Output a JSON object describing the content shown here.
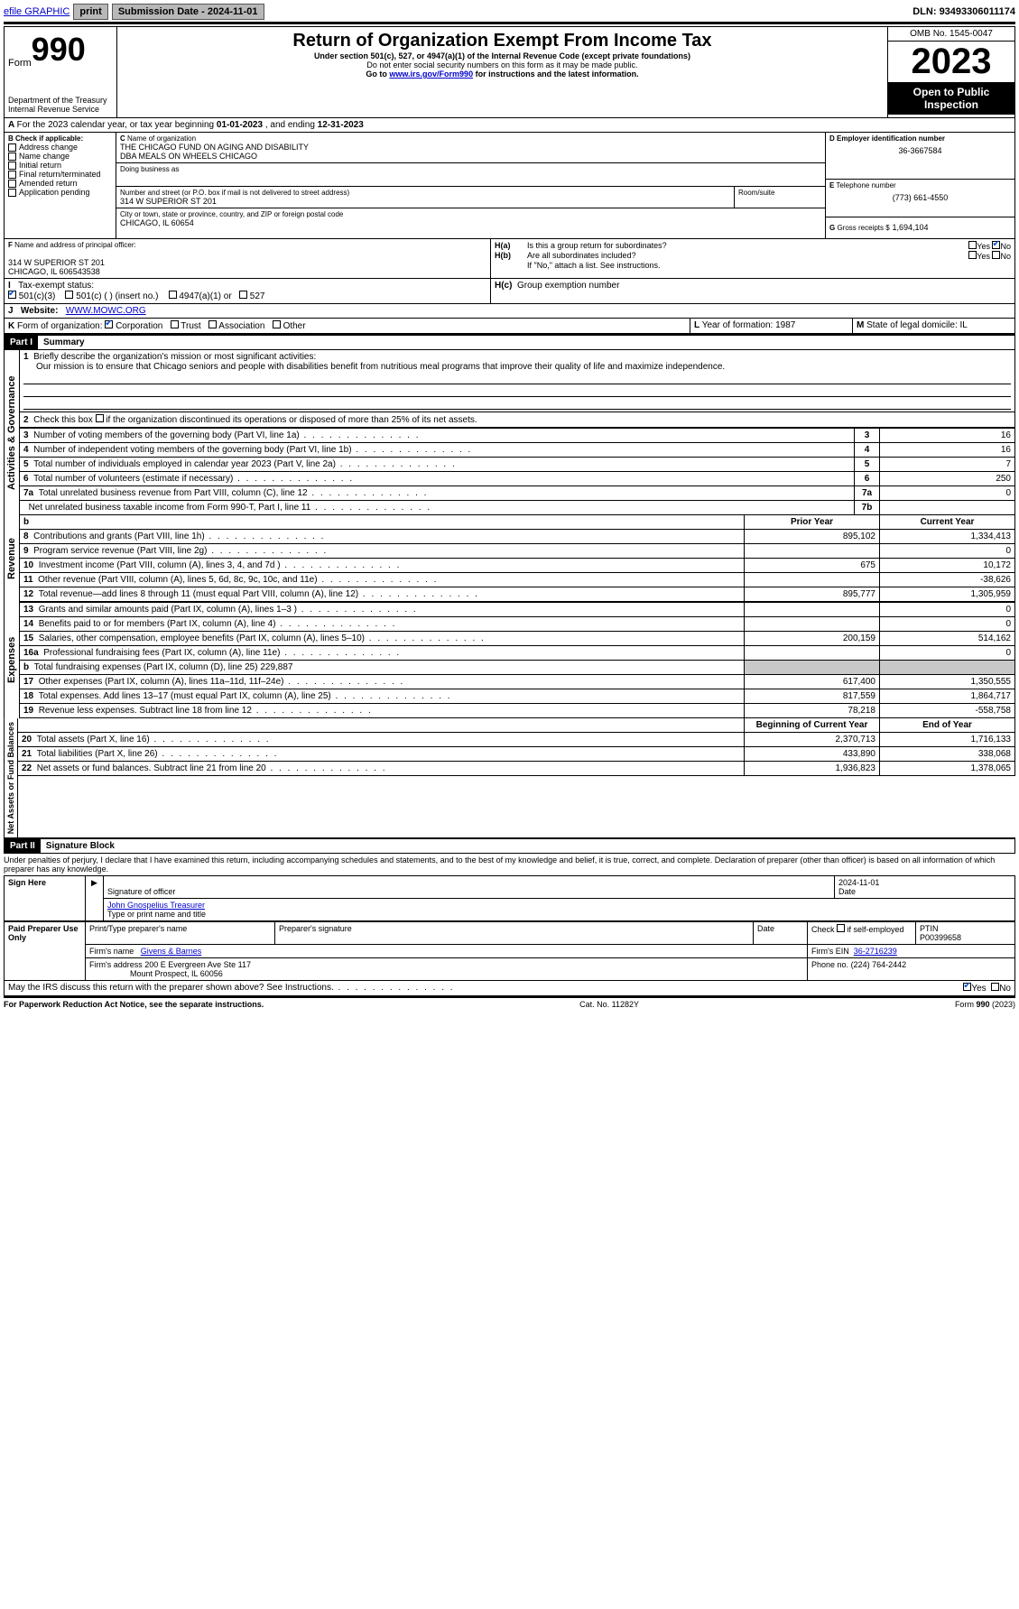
{
  "topbar": {
    "efile": "efile GRAPHIC",
    "print": "print",
    "submission_label": "Submission Date - ",
    "submission_date": "2024-11-01",
    "dln_label": "DLN: ",
    "dln": "93493306011174"
  },
  "header": {
    "form_word": "Form",
    "form_no": "990",
    "dept": "Department of the Treasury",
    "irs": "Internal Revenue Service",
    "title": "Return of Organization Exempt From Income Tax",
    "subtitle": "Under section 501(c), 527, or 4947(a)(1) of the Internal Revenue Code (except private foundations)",
    "warn": "Do not enter social security numbers on this form as it may be made public.",
    "goto_pre": "Go to ",
    "goto_link": "www.irs.gov/Form990",
    "goto_post": " for instructions and the latest information.",
    "omb": "OMB No. 1545-0047",
    "year": "2023",
    "open": "Open to Public Inspection"
  },
  "A": {
    "text": "For the 2023 calendar year, or tax year beginning ",
    "begin": "01-01-2023",
    "mid": " , and ending ",
    "end": "12-31-2023"
  },
  "B": {
    "label": "Check if applicable:",
    "opts": [
      "Address change",
      "Name change",
      "Initial return",
      "Final return/terminated",
      "Amended return",
      "Application pending"
    ]
  },
  "C": {
    "name_label": "Name of organization",
    "name1": "THE CHICAGO FUND ON AGING AND DISABILITY",
    "name2": "DBA MEALS ON WHEELS CHICAGO",
    "dba_label": "Doing business as",
    "street_label": "Number and street (or P.O. box if mail is not delivered to street address)",
    "street": "314 W SUPERIOR ST 201",
    "room_label": "Room/suite",
    "city_label": "City or town, state or province, country, and ZIP or foreign postal code",
    "city": "CHICAGO, IL  60654"
  },
  "D": {
    "label": "Employer identification number",
    "value": "36-3667584"
  },
  "E": {
    "label": "Telephone number",
    "value": "(773) 661-4550"
  },
  "G": {
    "label": "Gross receipts $",
    "value": "1,694,104"
  },
  "F": {
    "label": "Name and address of principal officer:",
    "addr1": "314 W SUPERIOR ST 201",
    "addr2": "CHICAGO, IL  606543538"
  },
  "H": {
    "a": "Is this a group return for subordinates?",
    "b": "Are all subordinates included?",
    "b_note": "If \"No,\" attach a list. See instructions.",
    "c": "Group exemption number",
    "yes": "Yes",
    "no": "No"
  },
  "I": {
    "label": "Tax-exempt status:",
    "o1": "501(c)(3)",
    "o2": "501(c) (   ) (insert no.)",
    "o3": "4947(a)(1) or",
    "o4": "527"
  },
  "J": {
    "label": "Website:",
    "value": "WWW.MOWC.ORG"
  },
  "K": {
    "label": "Form of organization:",
    "opts": [
      "Corporation",
      "Trust",
      "Association",
      "Other"
    ]
  },
  "L": {
    "label": "Year of formation:",
    "value": "1987"
  },
  "M": {
    "label": "State of legal domicile:",
    "value": "IL"
  },
  "part1": {
    "label": "Part I",
    "title": "Summary"
  },
  "mission": {
    "prompt": "Briefly describe the organization's mission or most significant activities:",
    "text": "Our mission is to ensure that Chicago seniors and people with disabilities benefit from nutritious meal programs that improve their quality of life and maximize independence."
  },
  "line2": "Check this box        if the organization discontinued its operations or disposed of more than 25% of its net assets.",
  "lines_single": [
    {
      "n": "3",
      "t": "Number of voting members of the governing body (Part VI, line 1a)",
      "b": "3",
      "v": "16"
    },
    {
      "n": "4",
      "t": "Number of independent voting members of the governing body (Part VI, line 1b)",
      "b": "4",
      "v": "16"
    },
    {
      "n": "5",
      "t": "Total number of individuals employed in calendar year 2023 (Part V, line 2a)",
      "b": "5",
      "v": "7"
    },
    {
      "n": "6",
      "t": "Total number of volunteers (estimate if necessary)",
      "b": "6",
      "v": "250"
    },
    {
      "n": "7a",
      "t": "Total unrelated business revenue from Part VIII, column (C), line 12",
      "b": "7a",
      "v": "0"
    },
    {
      "n": "",
      "t": "Net unrelated business taxable income from Form 990-T, Part I, line 11",
      "b": "7b",
      "v": ""
    }
  ],
  "hdr_prior": "Prior Year",
  "hdr_current": "Current Year",
  "revenue": [
    {
      "n": "8",
      "t": "Contributions and grants (Part VIII, line 1h)",
      "p": "895,102",
      "c": "1,334,413"
    },
    {
      "n": "9",
      "t": "Program service revenue (Part VIII, line 2g)",
      "p": "",
      "c": "0"
    },
    {
      "n": "10",
      "t": "Investment income (Part VIII, column (A), lines 3, 4, and 7d )",
      "p": "675",
      "c": "10,172"
    },
    {
      "n": "11",
      "t": "Other revenue (Part VIII, column (A), lines 5, 6d, 8c, 9c, 10c, and 11e)",
      "p": "",
      "c": "-38,626"
    },
    {
      "n": "12",
      "t": "Total revenue—add lines 8 through 11 (must equal Part VIII, column (A), line 12)",
      "p": "895,777",
      "c": "1,305,959"
    }
  ],
  "expenses": [
    {
      "n": "13",
      "t": "Grants and similar amounts paid (Part IX, column (A), lines 1–3 )",
      "p": "",
      "c": "0"
    },
    {
      "n": "14",
      "t": "Benefits paid to or for members (Part IX, column (A), line 4)",
      "p": "",
      "c": "0"
    },
    {
      "n": "15",
      "t": "Salaries, other compensation, employee benefits (Part IX, column (A), lines 5–10)",
      "p": "200,159",
      "c": "514,162"
    },
    {
      "n": "16a",
      "t": "Professional fundraising fees (Part IX, column (A), line 11e)",
      "p": "",
      "c": "0"
    },
    {
      "n": "b",
      "t": "Total fundraising expenses (Part IX, column (D), line 25) 229,887",
      "p": "SHADE",
      "c": "SHADE"
    },
    {
      "n": "17",
      "t": "Other expenses (Part IX, column (A), lines 11a–11d, 11f–24e)",
      "p": "617,400",
      "c": "1,350,555"
    },
    {
      "n": "18",
      "t": "Total expenses. Add lines 13–17 (must equal Part IX, column (A), line 25)",
      "p": "817,559",
      "c": "1,864,717"
    },
    {
      "n": "19",
      "t": "Revenue less expenses. Subtract line 18 from line 12",
      "p": "78,218",
      "c": "-558,758"
    }
  ],
  "hdr_begin": "Beginning of Current Year",
  "hdr_end": "End of Year",
  "netassets": [
    {
      "n": "20",
      "t": "Total assets (Part X, line 16)",
      "p": "2,370,713",
      "c": "1,716,133"
    },
    {
      "n": "21",
      "t": "Total liabilities (Part X, line 26)",
      "p": "433,890",
      "c": "338,068"
    },
    {
      "n": "22",
      "t": "Net assets or fund balances. Subtract line 21 from line 20",
      "p": "1,936,823",
      "c": "1,378,065"
    }
  ],
  "vert": {
    "gov": "Activities & Governance",
    "rev": "Revenue",
    "exp": "Expenses",
    "net": "Net Assets or Fund Balances"
  },
  "part2": {
    "label": "Part II",
    "title": "Signature Block"
  },
  "sig": {
    "decl": "Under penalties of perjury, I declare that I have examined this return, including accompanying schedules and statements, and to the best of my knowledge and belief, it is true, correct, and complete. Declaration of preparer (other than officer) is based on all information of which preparer has any knowledge.",
    "sign_here": "Sign Here",
    "sig_officer": "Signature of officer",
    "officer_name": "John Gnospelius  Treasurer",
    "type_name": "Type or print name and title",
    "date_label": "Date",
    "date": "2024-11-01",
    "paid": "Paid Preparer Use Only",
    "prep_name_label": "Print/Type preparer's name",
    "prep_sig_label": "Preparer's signature",
    "check_if": "Check         if self-employed",
    "ptin_label": "PTIN",
    "ptin": "P00399658",
    "firm_name_label": "Firm's name",
    "firm_name": "Givens & Barnes",
    "firm_ein_label": "Firm's EIN",
    "firm_ein": "36-2716239",
    "firm_addr_label": "Firm's address",
    "firm_addr1": "200 E Evergreen Ave Ste 117",
    "firm_addr2": "Mount Prospect, IL  60056",
    "phone_label": "Phone no.",
    "phone": "(224) 764-2442",
    "discuss": "May the IRS discuss this return with the preparer shown above? See Instructions.",
    "paperwork": "For Paperwork Reduction Act Notice, see the separate instructions.",
    "catno": "Cat. No. 11282Y",
    "formfoot": "Form 990 (2023)"
  }
}
